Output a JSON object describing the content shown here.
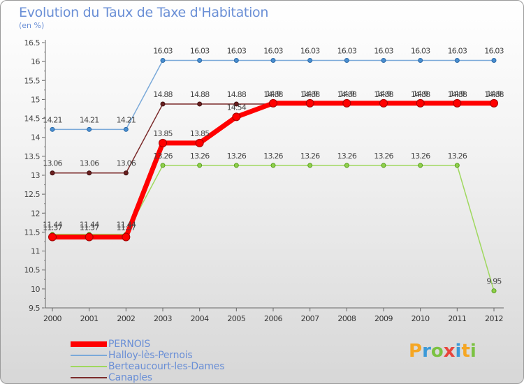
{
  "header": {
    "title": "Evolution du Taux de Taxe d'Habitation",
    "unit": "(en %)"
  },
  "logo": {
    "text": "Proxiti",
    "colors": [
      "#f5a623",
      "#3c9ad8",
      "#7cc242",
      "#e8453c",
      "#3c9ad8",
      "#f5a623",
      "#7cc242"
    ]
  },
  "chart_data": {
    "type": "line",
    "title": "Evolution du Taux de Taxe d'Habitation",
    "ylabel": "(en %)",
    "xlabel": "",
    "x": [
      "2000",
      "2001",
      "2002",
      "2003",
      "2004",
      "2005",
      "2006",
      "2007",
      "2008",
      "2009",
      "2010",
      "2011",
      "2012"
    ],
    "ylim": [
      9.5,
      16.5
    ],
    "yticks": [
      "9.5",
      "10",
      "10.5",
      "11",
      "11.5",
      "12",
      "12.5",
      "13",
      "13.5",
      "14",
      "14.5",
      "15",
      "15.5",
      "16",
      "16.5"
    ],
    "grid": false,
    "legend_position": "bottom-left",
    "series": [
      {
        "name": "PERNOIS",
        "color": "#ff0000",
        "values": [
          11.37,
          11.37,
          11.37,
          13.85,
          13.85,
          14.54,
          14.9,
          14.9,
          14.9,
          14.9,
          14.9,
          14.9,
          14.9
        ],
        "labels": [
          "11.37",
          "11.37",
          "11.37",
          "13.85",
          "13.85",
          "14.54",
          "14.9",
          "14.9",
          "14.9",
          "14.9",
          "14.9",
          "14.9",
          "14.9"
        ]
      },
      {
        "name": "Halloy-lès-Pernois",
        "color": "#7aa9d9",
        "values": [
          14.21,
          14.21,
          14.21,
          16.03,
          16.03,
          16.03,
          16.03,
          16.03,
          16.03,
          16.03,
          16.03,
          16.03,
          16.03
        ],
        "labels": [
          "14.21",
          "14.21",
          "14.21",
          "16.03",
          "16.03",
          "16.03",
          "16.03",
          "16.03",
          "16.03",
          "16.03",
          "16.03",
          "16.03",
          "16.03"
        ]
      },
      {
        "name": "Berteaucourt-les-Dames",
        "color": "#9fd85e",
        "values": [
          11.44,
          11.44,
          11.44,
          13.26,
          13.26,
          13.26,
          13.26,
          13.26,
          13.26,
          13.26,
          13.26,
          13.26,
          9.95
        ],
        "labels": [
          "11.44",
          "11.44",
          "11.44",
          "13.26",
          "13.26",
          "13.26",
          "13.26",
          "13.26",
          "13.26",
          "13.26",
          "13.26",
          "13.26",
          "9.95"
        ]
      },
      {
        "name": "Canaples",
        "color": "#7b2b2b",
        "values": [
          13.06,
          13.06,
          13.06,
          14.88,
          14.88,
          14.88,
          14.88,
          14.88,
          14.88,
          14.88,
          14.88,
          14.88,
          14.88
        ],
        "labels": [
          "13.06",
          "13.06",
          "13.06",
          "14.88",
          "14.88",
          "14.88",
          "14.88",
          "14.88",
          "14.88",
          "14.88",
          "14.88",
          "14.88",
          "14.88"
        ]
      }
    ]
  }
}
